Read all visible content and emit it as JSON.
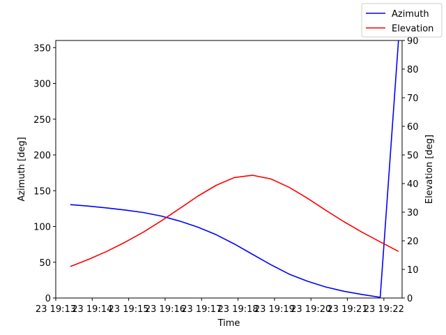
{
  "chart_data": {
    "type": "line",
    "xlabel": "Time",
    "ylabel_left": "Azimuth [deg]",
    "ylabel_right": "Elevation [deg]",
    "ylim_left": [
      0,
      360
    ],
    "ylim_right": [
      0,
      90
    ],
    "yticks_left": [
      0,
      50,
      100,
      150,
      200,
      250,
      300,
      350
    ],
    "yticks_right": [
      0,
      10,
      20,
      30,
      40,
      50,
      60,
      70,
      80,
      90
    ],
    "xlim_minutes": [
      13.0,
      22.5
    ],
    "x_ticks": [
      {
        "minute": 13,
        "label": "23 19:13"
      },
      {
        "minute": 14,
        "label": "23 19:14"
      },
      {
        "minute": 15,
        "label": "23 19:15"
      },
      {
        "minute": 16,
        "label": "23 19:16"
      },
      {
        "minute": 17,
        "label": "23 19:17"
      },
      {
        "minute": 18,
        "label": "23 19:18"
      },
      {
        "minute": 19,
        "label": "23 19:19"
      },
      {
        "minute": 20,
        "label": "23 19:20"
      },
      {
        "minute": 21,
        "label": "23 19:21"
      },
      {
        "minute": 22,
        "label": "23 19:22"
      }
    ],
    "x_minutes": [
      13.4,
      13.9,
      14.4,
      14.9,
      15.4,
      15.9,
      16.4,
      16.9,
      17.4,
      17.9,
      18.4,
      18.9,
      19.4,
      19.9,
      20.4,
      20.9,
      21.4,
      21.9,
      22.4
    ],
    "series": [
      {
        "name": "Azimuth",
        "axis": "left",
        "color": "#0000ff",
        "values": [
          130.5,
          128.5,
          126.0,
          123.0,
          119.5,
          114.5,
          107.5,
          99.0,
          88.5,
          75.5,
          61.0,
          46.5,
          33.5,
          23.5,
          15.5,
          9.5,
          5.0,
          1.0,
          360
        ]
      },
      {
        "name": "Elevation",
        "axis": "right",
        "color": "#ff0000",
        "values": [
          11.0,
          13.5,
          16.3,
          19.5,
          23.0,
          27.0,
          31.3,
          35.6,
          39.4,
          42.1,
          42.9,
          41.6,
          38.7,
          34.9,
          30.7,
          26.7,
          23.0,
          19.6,
          16.3
        ]
      }
    ],
    "legend_position": "top-right",
    "grid": false
  }
}
